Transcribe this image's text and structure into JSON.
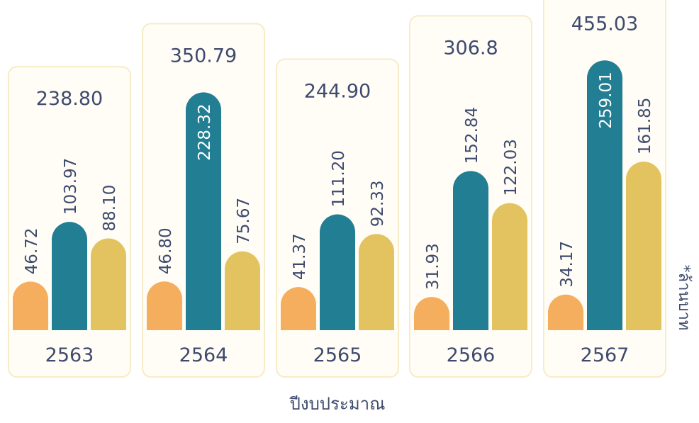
{
  "chart_data": {
    "type": "bar",
    "x_label": "ปีงบประมาณ",
    "y_label": "*ล้านบาท",
    "categories": [
      "2563",
      "2564",
      "2565",
      "2566",
      "2567"
    ],
    "totals": [
      238.8,
      350.79,
      244.9,
      306.8,
      455.03
    ],
    "total_labels": [
      "238.80",
      "350.79",
      "244.90",
      "306.8",
      "455.03"
    ],
    "series": [
      {
        "color": "#f5ad5e",
        "values": [
          46.72,
          46.8,
          41.37,
          31.93,
          34.17
        ],
        "value_labels": [
          "46.72",
          "46.80",
          "41.37",
          "31.93",
          "34.17"
        ]
      },
      {
        "color": "#217e93",
        "values": [
          103.97,
          228.32,
          111.2,
          152.84,
          259.01
        ],
        "value_labels": [
          "103.97",
          "228.32",
          "111.20",
          "152.84",
          "259.01"
        ]
      },
      {
        "color": "#e3c35f",
        "values": [
          88.1,
          75.67,
          92.33,
          122.03,
          161.85
        ],
        "value_labels": [
          "88.10",
          "75.67",
          "92.33",
          "122.03",
          "161.85"
        ]
      }
    ],
    "ylim": [
      0,
      300
    ]
  }
}
